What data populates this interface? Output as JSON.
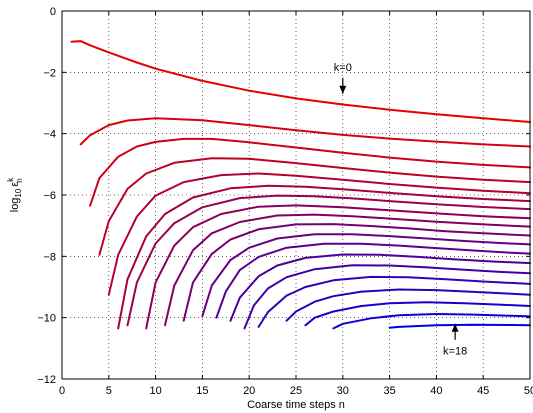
{
  "chart_data": {
    "type": "line",
    "xlabel": "Coarse time steps n",
    "ylabel_base": "log",
    "ylabel_sub": "10",
    "ylabel_eps": "ε",
    "ylabel_sup": "k",
    "ylabel_nsub": "n",
    "xlim": [
      0,
      50
    ],
    "ylim": [
      -12,
      0
    ],
    "xticks": [
      "0",
      "5",
      "10",
      "15",
      "20",
      "25",
      "30",
      "35",
      "40",
      "45",
      "50"
    ],
    "yticks": [
      "0",
      "−2",
      "−4",
      "−6",
      "−8",
      "−10",
      "−12"
    ],
    "grid": true,
    "color_start": "#e60000",
    "color_end": "#0000e6",
    "annotations": [
      {
        "label": "k=0",
        "arrow_x": 30,
        "arrow_tip_y": -2.7,
        "text_y": -1.95,
        "direction": "down"
      },
      {
        "label": "k=18",
        "arrow_x": 42,
        "arrow_tip_y": -10.2,
        "text_y": -11.2,
        "direction": "up"
      }
    ],
    "series": [
      {
        "x": [
          1,
          2,
          3,
          5,
          8,
          10,
          15,
          20,
          25,
          30,
          35,
          40,
          45,
          50
        ],
        "y": [
          -1.0,
          -0.98,
          -1.12,
          -1.35,
          -1.68,
          -1.88,
          -2.28,
          -2.6,
          -2.85,
          -3.05,
          -3.22,
          -3.37,
          -3.5,
          -3.62
        ]
      },
      {
        "x": [
          2,
          3,
          5,
          7,
          10,
          15,
          20,
          25,
          30,
          35,
          40,
          45,
          50
        ],
        "y": [
          -4.35,
          -4.05,
          -3.72,
          -3.57,
          -3.5,
          -3.56,
          -3.72,
          -3.89,
          -4.04,
          -4.16,
          -4.26,
          -4.35,
          -4.42
        ]
      },
      {
        "x": [
          3,
          4,
          6,
          8,
          10,
          13,
          16,
          20,
          25,
          30,
          35,
          40,
          45,
          50
        ],
        "y": [
          -6.35,
          -5.45,
          -4.75,
          -4.42,
          -4.27,
          -4.17,
          -4.17,
          -4.28,
          -4.45,
          -4.62,
          -4.78,
          -4.91,
          -5.02,
          -5.1
        ]
      },
      {
        "x": [
          4,
          5,
          7,
          9,
          12,
          16,
          20,
          25,
          30,
          35,
          40,
          45,
          50
        ],
        "y": [
          -7.95,
          -6.85,
          -5.8,
          -5.3,
          -4.95,
          -4.8,
          -4.82,
          -4.96,
          -5.12,
          -5.27,
          -5.4,
          -5.5,
          -5.58
        ]
      },
      {
        "x": [
          5,
          6,
          8,
          10,
          13,
          17,
          21,
          25,
          30,
          35,
          40,
          45,
          50
        ],
        "y": [
          -9.25,
          -7.95,
          -6.7,
          -6.02,
          -5.58,
          -5.35,
          -5.3,
          -5.37,
          -5.5,
          -5.64,
          -5.76,
          -5.86,
          -5.94
        ]
      },
      {
        "x": [
          6,
          7,
          9,
          11,
          14,
          18,
          22,
          26,
          30,
          35,
          40,
          45,
          50
        ],
        "y": [
          -10.35,
          -8.75,
          -7.35,
          -6.62,
          -6.08,
          -5.78,
          -5.7,
          -5.73,
          -5.81,
          -5.93,
          -6.04,
          -6.13,
          -6.2
        ]
      },
      {
        "x": [
          7,
          8,
          10,
          12,
          15,
          19,
          23,
          27,
          31,
          35,
          40,
          45,
          50
        ],
        "y": [
          -10.25,
          -8.85,
          -7.58,
          -6.92,
          -6.4,
          -6.1,
          -6.02,
          -6.04,
          -6.11,
          -6.2,
          -6.3,
          -6.39,
          -6.46
        ]
      },
      {
        "x": [
          9,
          10,
          12,
          14,
          17,
          21,
          25,
          30,
          35,
          40,
          45,
          50
        ],
        "y": [
          -10.35,
          -8.85,
          -7.65,
          -7.05,
          -6.62,
          -6.38,
          -6.34,
          -6.4,
          -6.5,
          -6.6,
          -6.69,
          -6.76
        ]
      },
      {
        "x": [
          11,
          12,
          14,
          16,
          19,
          23,
          27,
          31,
          35,
          40,
          45,
          50
        ],
        "y": [
          -10.25,
          -8.95,
          -7.8,
          -7.25,
          -6.88,
          -6.67,
          -6.64,
          -6.69,
          -6.77,
          -6.87,
          -6.96,
          -7.03
        ]
      },
      {
        "x": [
          13,
          14,
          16,
          18,
          21,
          25,
          29,
          33,
          37,
          41,
          45,
          50
        ],
        "y": [
          -10.1,
          -8.85,
          -7.92,
          -7.45,
          -7.12,
          -6.96,
          -6.95,
          -7.01,
          -7.09,
          -7.18,
          -7.25,
          -7.32
        ]
      },
      {
        "x": [
          15,
          16,
          18,
          20,
          23,
          27,
          31,
          35,
          39,
          43,
          47,
          50
        ],
        "y": [
          -9.95,
          -8.95,
          -8.12,
          -7.72,
          -7.42,
          -7.28,
          -7.28,
          -7.34,
          -7.42,
          -7.5,
          -7.57,
          -7.61
        ]
      },
      {
        "x": [
          16.5,
          17.5,
          19,
          21,
          24,
          28,
          32,
          36,
          40,
          44,
          48,
          50
        ],
        "y": [
          -10.0,
          -9.15,
          -8.45,
          -8.02,
          -7.72,
          -7.59,
          -7.59,
          -7.65,
          -7.73,
          -7.81,
          -7.88,
          -7.91
        ]
      },
      {
        "x": [
          18,
          19,
          21,
          23,
          26,
          30,
          34,
          38,
          42,
          46,
          50
        ],
        "y": [
          -10.1,
          -9.35,
          -8.65,
          -8.3,
          -8.05,
          -7.94,
          -7.95,
          -8.02,
          -8.1,
          -8.17,
          -8.22
        ]
      },
      {
        "x": [
          19.5,
          20.5,
          22,
          24,
          27,
          31,
          35,
          39,
          43,
          47,
          50
        ],
        "y": [
          -10.35,
          -9.6,
          -9.05,
          -8.68,
          -8.42,
          -8.29,
          -8.3,
          -8.36,
          -8.44,
          -8.51,
          -8.55
        ]
      },
      {
        "x": [
          21,
          22,
          24,
          26,
          29,
          33,
          37,
          41,
          45,
          50
        ],
        "y": [
          -10.3,
          -9.82,
          -9.28,
          -9.0,
          -8.78,
          -8.67,
          -8.68,
          -8.75,
          -8.82,
          -8.9
        ]
      },
      {
        "x": [
          24,
          25,
          27,
          29,
          32,
          36,
          40,
          44,
          48,
          50
        ],
        "y": [
          -10.1,
          -9.8,
          -9.48,
          -9.3,
          -9.15,
          -9.08,
          -9.1,
          -9.16,
          -9.22,
          -9.25
        ]
      },
      {
        "x": [
          26,
          27,
          29,
          32,
          35,
          39,
          43,
          47,
          50
        ],
        "y": [
          -10.25,
          -10.0,
          -9.8,
          -9.62,
          -9.53,
          -9.5,
          -9.53,
          -9.58,
          -9.62
        ]
      },
      {
        "x": [
          29,
          30,
          33,
          36,
          40,
          44,
          48,
          50
        ],
        "y": [
          -10.35,
          -10.2,
          -10.02,
          -9.92,
          -9.88,
          -9.9,
          -9.94,
          -9.96
        ]
      },
      {
        "x": [
          35,
          36,
          40,
          44,
          48,
          50
        ],
        "y": [
          -10.33,
          -10.3,
          -10.25,
          -10.23,
          -10.24,
          -10.25
        ]
      }
    ]
  }
}
